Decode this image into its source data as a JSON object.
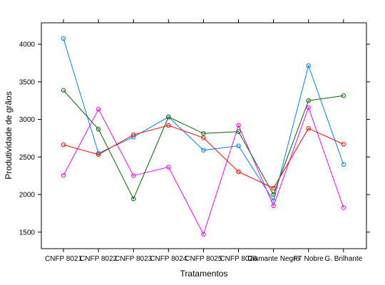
{
  "chart_data": {
    "type": "line",
    "xlabel": "Tratamentos",
    "ylabel": "Produtividade de grãos",
    "categories": [
      "CNFP 8021",
      "CNFP 8022",
      "CNFP 8023",
      "CNFP 8024",
      "CNFP 8025",
      "CNFP 8026",
      "Diamante Negro",
      "FT Nobre",
      "G. Brilhante"
    ],
    "series": [
      {
        "color": "#0080ff",
        "values": [
          4075,
          2550,
          2765,
          3032,
          2590,
          2648,
          1918,
          3715,
          2400
        ]
      },
      {
        "color": "#ff00ff",
        "values": [
          2255,
          3135,
          2252,
          2365,
          1472,
          2920,
          1850,
          3158,
          1825
        ]
      },
      {
        "color": "#006400",
        "values": [
          3387,
          2870,
          1943,
          3032,
          2813,
          2837,
          2000,
          3250,
          3315
        ]
      },
      {
        "color": "#ff0000",
        "values": [
          2663,
          2532,
          2795,
          2920,
          2755,
          2303,
          2085,
          2880,
          2670
        ]
      }
    ],
    "ylim": [
      1280,
      4285
    ],
    "yticks": [
      1500,
      2000,
      2500,
      3000,
      3500,
      4000
    ],
    "grid": false
  }
}
